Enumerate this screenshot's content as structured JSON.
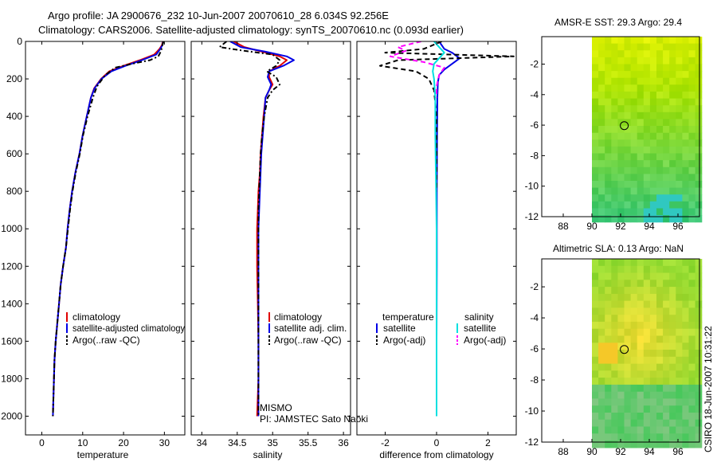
{
  "header": {
    "title_line1": "Argo profile: JA 2900676_232 10-Jun-2007 20070610_28 6.034S 92.256E",
    "title_line2": "Climatology: CARS2006. Satellite-adjusted climatology: synTS_20070610.nc (0.093d earlier)"
  },
  "colors": {
    "climatology": "#e00000",
    "satellite": "#0000e6",
    "argo": "#000000",
    "salinity_sat": "#00e0e0",
    "salinity_argo": "#ff00ff"
  },
  "chart_data": [
    {
      "type": "line",
      "id": "temperature",
      "xlabel": "temperature",
      "ylabel": "",
      "xlim": [
        -4,
        35
      ],
      "ylim": [
        0,
        2100
      ],
      "y_reversed": true,
      "xticks": [
        0,
        10,
        20,
        30
      ],
      "yticks": [
        0,
        200,
        400,
        600,
        800,
        1000,
        1200,
        1400,
        1600,
        1800,
        2000
      ],
      "legend": [
        "climatology",
        "satellite-adjusted climatology",
        "Argo(..raw -QC)"
      ],
      "series": [
        {
          "name": "climatology",
          "style": "solid",
          "color": "#e00000",
          "x": [
            29.6,
            29.4,
            28.8,
            27.5,
            24,
            20,
            16.5,
            14.5,
            12.8,
            12,
            11,
            10,
            9.2,
            8.2,
            7.4,
            6.8,
            6.3,
            5.9,
            5.2,
            4.6,
            4.2,
            3.8,
            3.4,
            3.1,
            2.9,
            2.7
          ],
          "y": [
            0,
            20,
            40,
            70,
            100,
            130,
            160,
            200,
            250,
            300,
            400,
            500,
            600,
            700,
            800,
            900,
            1000,
            1100,
            1200,
            1300,
            1400,
            1500,
            1600,
            1700,
            1850,
            2000
          ]
        },
        {
          "name": "satellite-adjusted climatology",
          "style": "solid",
          "color": "#0000e6",
          "x": [
            29.7,
            29.5,
            29,
            28,
            24.5,
            20.5,
            17,
            14.6,
            12.9,
            12,
            11,
            10,
            9.2,
            8.2,
            7.4,
            6.8,
            6.3,
            5.9,
            5.2,
            4.6,
            4.2,
            3.8,
            3.4,
            3.1,
            2.9,
            2.7
          ],
          "y": [
            0,
            20,
            40,
            70,
            100,
            130,
            160,
            200,
            250,
            300,
            400,
            500,
            600,
            700,
            800,
            900,
            1000,
            1100,
            1200,
            1300,
            1400,
            1500,
            1600,
            1700,
            1850,
            2000
          ]
        },
        {
          "name": "Argo(..raw -QC)",
          "style": "dashdot",
          "color": "#000000",
          "x": [
            29.8,
            29.5,
            29.2,
            28.5,
            26.5,
            22,
            18,
            15.5,
            13.5,
            12.5,
            11.2,
            10.1,
            9.3,
            8.3,
            7.5,
            6.9,
            6.4,
            5.9,
            5.2,
            4.6,
            4.2,
            3.8,
            3.4,
            3.1,
            2.9,
            2.7
          ],
          "y": [
            0,
            20,
            50,
            80,
            100,
            120,
            140,
            180,
            240,
            300,
            400,
            500,
            600,
            700,
            800,
            900,
            1000,
            1100,
            1200,
            1300,
            1400,
            1500,
            1600,
            1700,
            1850,
            2000
          ]
        }
      ]
    },
    {
      "type": "line",
      "id": "salinity",
      "xlabel": "salinity",
      "xlim": [
        33.85,
        36.1
      ],
      "ylim": [
        0,
        2100
      ],
      "y_reversed": true,
      "xticks": [
        34,
        34.5,
        35,
        35.5,
        36
      ],
      "xtick_labels": [
        "34",
        "34.5",
        "35",
        "35.5",
        "36"
      ],
      "legend": [
        "climatology",
        "satellite adj. clim.",
        "Argo(..raw -QC)"
      ],
      "annotations": [
        "MISMO",
        "PI: JAMSTEC Sato Naoki"
      ],
      "series": [
        {
          "name": "climatology",
          "style": "solid",
          "color": "#e00000",
          "x": [
            34.45,
            34.6,
            34.85,
            35.1,
            35.2,
            35.1,
            34.95,
            34.95,
            35.0,
            34.95,
            34.9,
            34.87,
            34.85,
            34.83,
            34.82,
            34.8,
            34.79,
            34.78,
            34.78,
            34.79,
            34.8,
            34.8,
            34.78
          ],
          "y": [
            0,
            30,
            55,
            80,
            100,
            130,
            160,
            190,
            230,
            260,
            300,
            400,
            500,
            600,
            700,
            800,
            900,
            1000,
            1200,
            1400,
            1600,
            1800,
            2000
          ]
        },
        {
          "name": "satellite adj. clim.",
          "style": "solid",
          "color": "#0000e6",
          "x": [
            34.4,
            34.55,
            34.9,
            35.2,
            35.3,
            35.15,
            34.95,
            34.93,
            34.98,
            34.95,
            34.9,
            34.88,
            34.86,
            34.84,
            34.83,
            34.82,
            34.81,
            34.8,
            34.8,
            34.8,
            34.8,
            34.8,
            34.8
          ],
          "y": [
            0,
            30,
            55,
            80,
            100,
            130,
            160,
            190,
            230,
            260,
            300,
            400,
            500,
            600,
            700,
            800,
            900,
            1000,
            1200,
            1400,
            1600,
            1800,
            2000
          ]
        },
        {
          "name": "Argo(..raw -QC)",
          "style": "dashdot",
          "color": "#000000",
          "x": [
            34.35,
            34.25,
            34.6,
            35.0,
            35.1,
            35.05,
            34.92,
            35.05,
            35.1,
            35.0,
            34.93,
            34.88,
            34.85,
            34.83,
            34.82,
            34.81,
            34.8,
            34.8,
            34.8,
            34.8,
            34.8,
            34.8,
            34.8
          ],
          "y": [
            0,
            30,
            50,
            70,
            100,
            130,
            160,
            190,
            230,
            260,
            300,
            400,
            500,
            600,
            700,
            800,
            900,
            1000,
            1200,
            1400,
            1600,
            1800,
            2000
          ]
        }
      ]
    },
    {
      "type": "line",
      "id": "difference",
      "xlabel": "difference from climatology",
      "xlim": [
        -3.1,
        3.1
      ],
      "ylim": [
        0,
        2100
      ],
      "y_reversed": true,
      "xticks": [
        -2,
        0,
        2
      ],
      "legend_groups": [
        {
          "heading": "temperature",
          "items": [
            "satellite",
            "Argo(-adj)"
          ]
        },
        {
          "heading": "salinity",
          "items": [
            "satellite",
            "Argo(-adj)"
          ]
        }
      ],
      "series": [
        {
          "name": "temperature satellite",
          "style": "solid",
          "color": "#0000e6",
          "x": [
            0.1,
            0.3,
            0.6,
            0.9,
            0.6,
            0.3,
            0.1,
            0.05,
            0.03,
            0.02,
            0.01,
            0.01,
            0.0,
            0.0
          ],
          "y": [
            0,
            40,
            60,
            90,
            120,
            150,
            180,
            220,
            300,
            500,
            800,
            1200,
            1600,
            2000
          ]
        },
        {
          "name": "temperature Argo(-adj)",
          "style": "dashed",
          "color": "#000000",
          "x": [
            0.2,
            -0.5,
            -2.0,
            3.0,
            -1.5,
            -2.2,
            -0.8,
            -0.3,
            -0.1,
            0.0,
            0.0,
            0.0
          ],
          "y": [
            0,
            40,
            60,
            80,
            100,
            130,
            160,
            200,
            260,
            400,
            600,
            800
          ]
        },
        {
          "name": "salinity satellite",
          "style": "solid",
          "color": "#00e0e0",
          "x": [
            -0.1,
            0.1,
            0.3,
            0.1,
            -0.1,
            -0.15,
            -0.1,
            -0.05,
            -0.05,
            -0.02,
            0.0,
            0.0,
            0.0,
            0.0
          ],
          "y": [
            0,
            30,
            60,
            90,
            120,
            160,
            200,
            300,
            500,
            800,
            1000,
            1400,
            1800,
            2000
          ]
        },
        {
          "name": "salinity Argo(-adj)",
          "style": "dashed",
          "color": "#ff00ff",
          "x": [
            -0.6,
            -1.5,
            -1.2,
            -1.8,
            -0.5,
            0.3,
            0.1,
            0.0,
            0.0
          ],
          "y": [
            0,
            30,
            50,
            80,
            110,
            140,
            180,
            240,
            300
          ]
        }
      ]
    },
    {
      "type": "heatmap",
      "id": "sst_map",
      "title": "AMSR-E SST: 29.3 Argo: 29.4",
      "xlim": [
        86.5,
        97.5
      ],
      "ylim": [
        -12,
        -0.2
      ],
      "xticks": [
        88,
        90,
        92,
        94,
        96
      ],
      "yticks": [
        -2,
        -4,
        -6,
        -8,
        -10,
        -12
      ],
      "data_extent_lon": [
        90,
        97.5
      ],
      "marker": {
        "lon": 92.256,
        "lat": -6.034
      }
    },
    {
      "type": "heatmap",
      "id": "sla_map",
      "title": "Altimetric SLA: 0.13 Argo: NaN",
      "xlim": [
        86.5,
        97.5
      ],
      "ylim": [
        -12,
        -0.2
      ],
      "xticks": [
        88,
        90,
        92,
        94,
        96
      ],
      "yticks": [
        -2,
        -4,
        -6,
        -8,
        -10,
        -12
      ],
      "data_extent_lon": [
        90,
        97.5
      ],
      "marker": {
        "lon": 92.256,
        "lat": -6.034
      }
    }
  ],
  "footer": {
    "stamp": "CSIRO 18-Jun-2007 10:31:22"
  }
}
